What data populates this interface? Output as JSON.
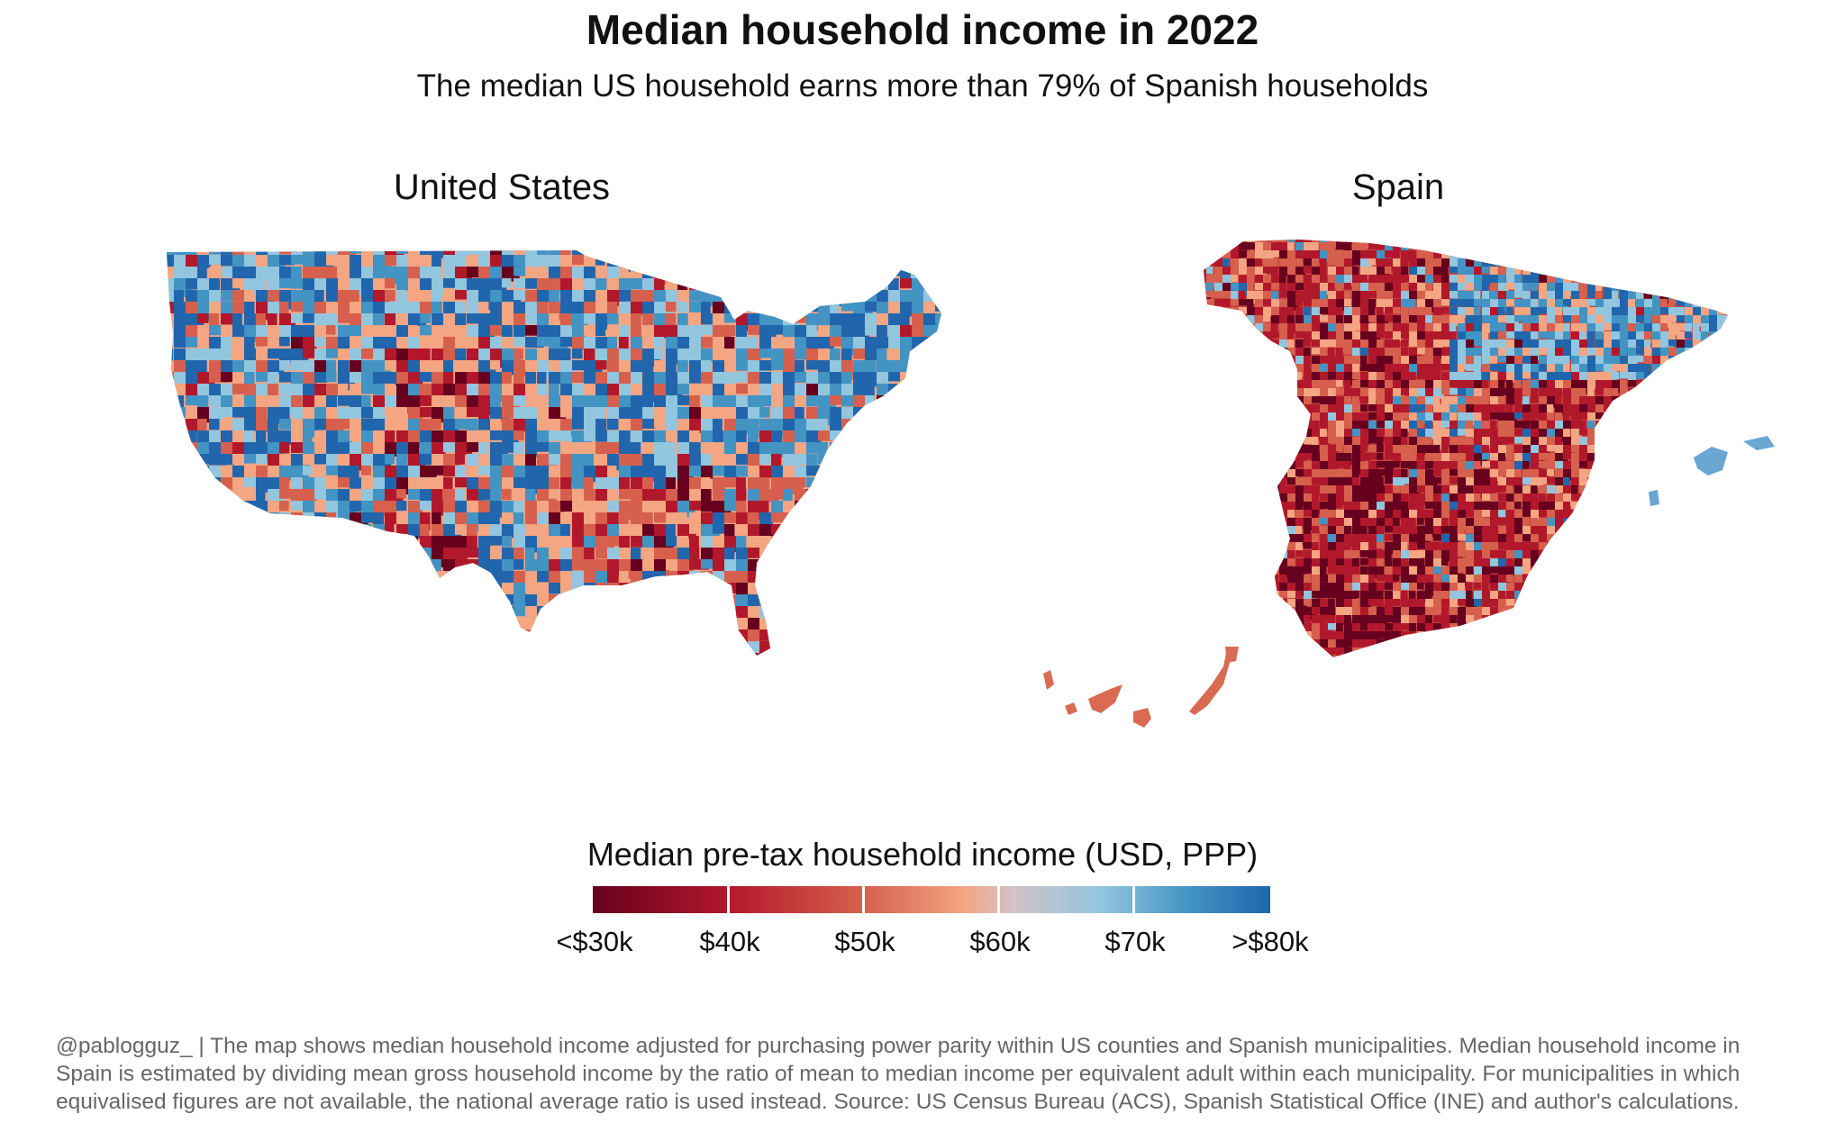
{
  "header": {
    "title": "Median household income in 2022",
    "subtitle": "The median US household earns more than 79% of Spanish households"
  },
  "panels": {
    "us": {
      "title": "United States"
    },
    "spain": {
      "title": "Spain"
    }
  },
  "legend": {
    "title": "Median pre-tax household income (USD, PPP)",
    "labels": [
      "<$30k",
      "$40k",
      "$50k",
      "$60k",
      "$70k",
      ">$80k"
    ],
    "colors": [
      "#67001f",
      "#b2182b",
      "#d6604d",
      "#f4a582",
      "#92c5de",
      "#4393c3",
      "#2166ac"
    ]
  },
  "footer": {
    "text": "@pablogguz_ | The map shows median household income adjusted for purchasing power parity within US counties and Spanish municipalities. Median household income in Spain is estimated by dividing mean gross household income by the ratio of mean to median income per equivalent adult within each municipality. For municipalities in which equivalised figures are not available, the national average ratio is used instead. Source: US Census Bureau (ACS), Spanish Statistical Office (INE) and author's calculations."
  }
}
